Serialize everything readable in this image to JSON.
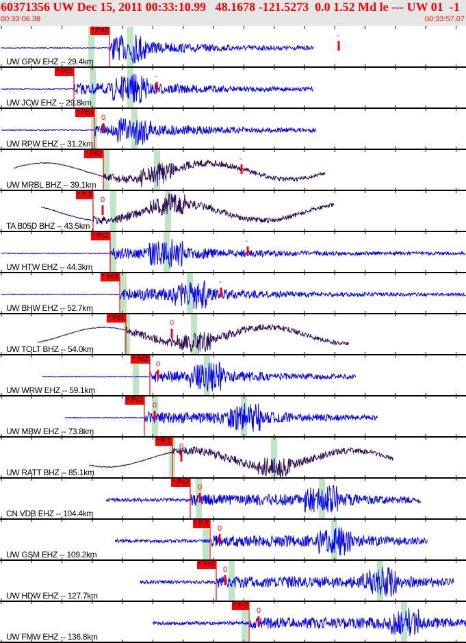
{
  "header": {
    "title": "60371356 UW Dec 15, 2011 00:33:10.99   48.1678 -121.5273  0.0 1.52 Md le --- UW 01  -1",
    "start_time": "00:33:06.38",
    "end_time": "00:33:57.07"
  },
  "colors": {
    "short_period": "#0000ff",
    "broadband": "#2a0a55",
    "pick": "#ff0000",
    "window": "#bfe6c4"
  },
  "traces": [
    {
      "label": "UW GPW EHZ -- 29.4km",
      "pick": "* Pd2",
      "marker": "-"
    },
    {
      "label": "UW JCW EHZ -- 29.8km",
      "pick": "* Pc1",
      "marker": "-"
    },
    {
      "label": "UW RPW EHZ -- 31.2km",
      "pick": "* Pc3",
      "marker": "0"
    },
    {
      "label": "UW MRBL BHZ -- 39.1km",
      "pick": "* Pd2",
      "marker": "-"
    },
    {
      "label": "TA B05D BHZ -- 43.5km",
      "pick": "* P 3",
      "marker": "0"
    },
    {
      "label": "UW HTW EHZ -- 44.3km",
      "pick": "* Pc2",
      "marker": "-"
    },
    {
      "label": "UW BHW EHZ -- 52.7km",
      "pick": "* Pd3",
      "marker": "-"
    },
    {
      "label": "UW TOLT BHZ -- 54.0km",
      "pick": "* Pd1",
      "marker": "0"
    },
    {
      "label": "UW WRW EHZ -- 59.1km",
      "pick": "* Pd2",
      "marker": "0"
    },
    {
      "label": "UW MBW EHZ -- 73.8km",
      "pick": "* Pc1",
      "marker": "0"
    },
    {
      "label": "UW RATT BHZ -- 85.1km",
      "pick": "* P 1",
      "marker": "0"
    },
    {
      "label": "CN VDB EHZ -- 104.4km",
      "pick": "* Pc2",
      "marker": "0"
    },
    {
      "label": "UW GSM EHZ -- 109.2km",
      "pick": "* P 2",
      "marker": "0"
    },
    {
      "label": "UW HDW EHZ -- 127.7km",
      "pick": "* Pc2",
      "marker": "0"
    },
    {
      "label": "UW FMW EHZ -- 136.8km",
      "pick": "* P 2",
      "marker": "0"
    }
  ]
}
